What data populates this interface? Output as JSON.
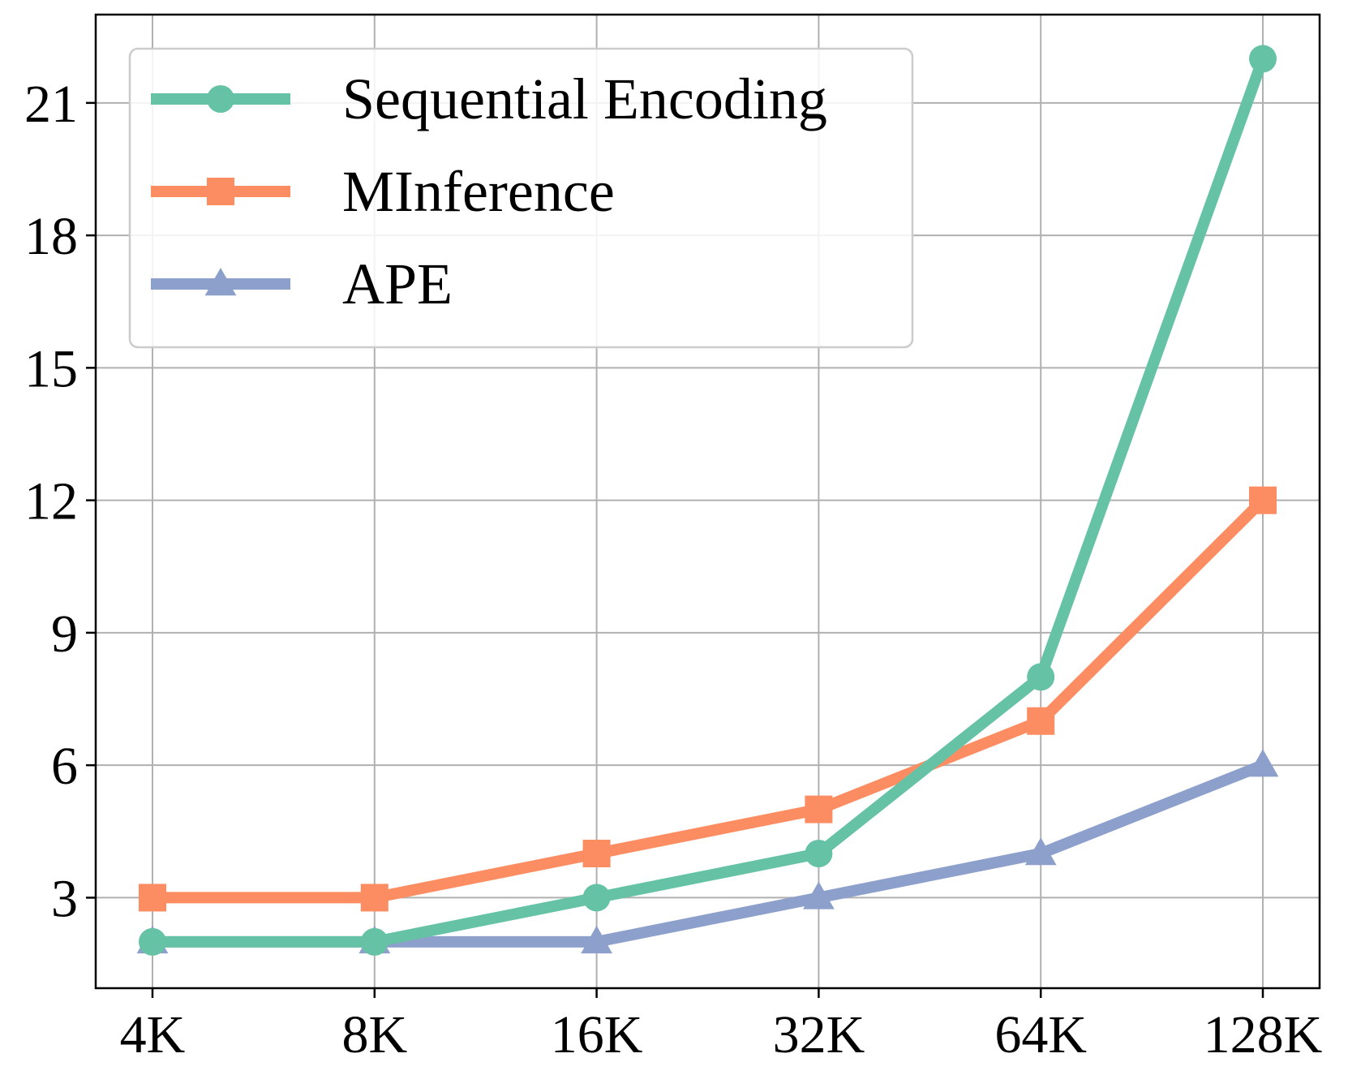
{
  "chart_data": {
    "type": "line",
    "title": "",
    "xlabel": "",
    "ylabel": "",
    "categories": [
      "4K",
      "8K",
      "16K",
      "32K",
      "64K",
      "128K"
    ],
    "yticks": [
      3,
      6,
      9,
      12,
      15,
      18,
      21
    ],
    "ylim": [
      0.95,
      23.0
    ],
    "grid": true,
    "legend_position": "top-left",
    "series": [
      {
        "name": "Sequential Encoding",
        "values": [
          2,
          2,
          3,
          4,
          8,
          22
        ],
        "color": "#66c2a5",
        "marker": "circle"
      },
      {
        "name": "MInference",
        "values": [
          3,
          3,
          4,
          5,
          7,
          12
        ],
        "color": "#fc8d62",
        "marker": "square"
      },
      {
        "name": "APE",
        "values": [
          2,
          2,
          2,
          3,
          4,
          6
        ],
        "color": "#8da0cb",
        "marker": "triangle"
      }
    ]
  }
}
